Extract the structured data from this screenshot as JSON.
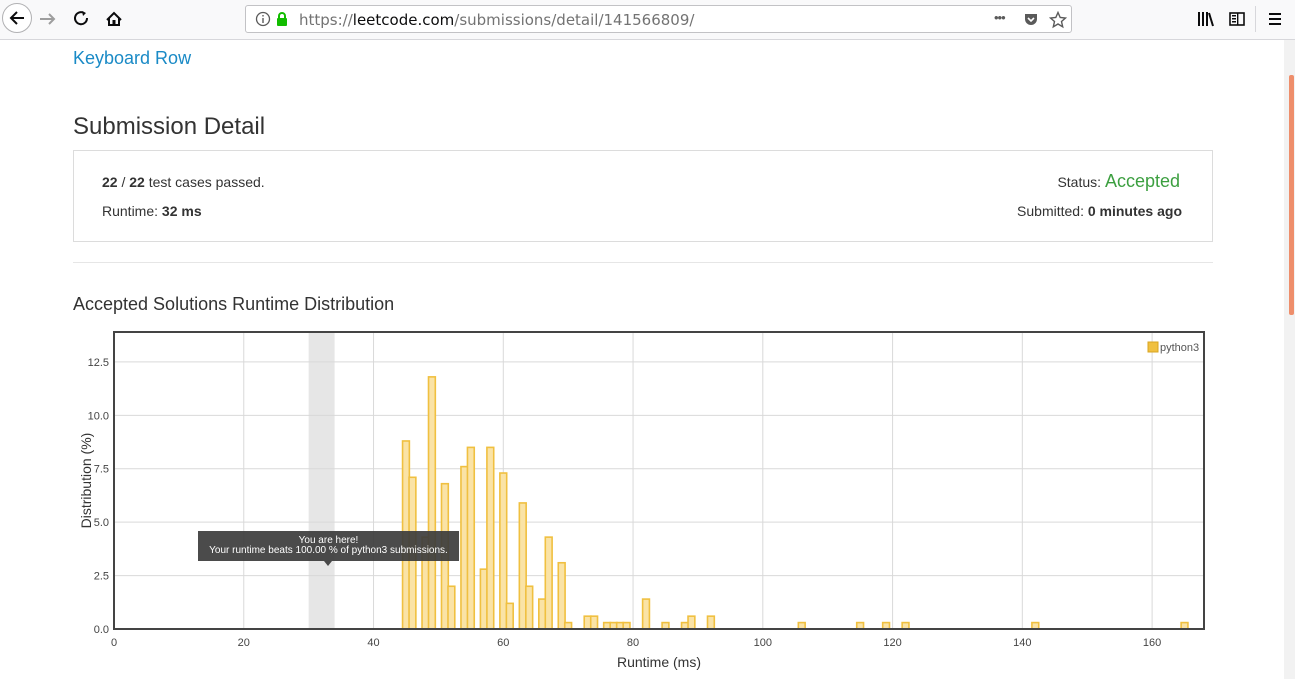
{
  "browser": {
    "url_scheme": "https://",
    "url_host": "leetcode.com",
    "url_path": "/submissions/detail/141566809/",
    "more_glyph": "•••"
  },
  "problem": {
    "title": "Keyboard Row"
  },
  "page_title": "Submission Detail",
  "summary": {
    "passed": "22",
    "separator": "/",
    "total": "22",
    "passed_suffix": "test cases passed.",
    "runtime_label": "Runtime:",
    "runtime_value": "32 ms",
    "status_label": "Status:",
    "status_value": "Accepted",
    "submitted_label": "Submitted:",
    "submitted_value": "0 minutes ago",
    "accent_color": "#3c9f40",
    "link_color": "#1a8ac6"
  },
  "section_title": "Accepted Solutions Runtime Distribution",
  "tooltip": {
    "line1": "You are here!",
    "line2": "Your runtime beats 100.00 % of python3 submissions."
  },
  "chart_data": {
    "type": "bar",
    "xlabel": "Runtime (ms)",
    "ylabel": "Distribution (%)",
    "xlim": [
      0,
      168
    ],
    "ylim": [
      0,
      13.9
    ],
    "xticks": [
      "0",
      "20",
      "40",
      "60",
      "80",
      "100",
      "120",
      "140",
      "160"
    ],
    "yticks": [
      "0.0",
      "2.5",
      "5.0",
      "7.5",
      "10.0",
      "12.5"
    ],
    "grid": true,
    "legend_position": "top-right",
    "highlight_x": [
      30,
      34
    ],
    "series": [
      {
        "name": "python3",
        "color": "#f0c040",
        "x": [
          45,
          46,
          48,
          49,
          51,
          52,
          54,
          55,
          57,
          58,
          60,
          61,
          63,
          64,
          66,
          67,
          69,
          70,
          73,
          74,
          76,
          77,
          78,
          79,
          82,
          85,
          88,
          89,
          92,
          106,
          115,
          119,
          122,
          142,
          165
        ],
        "values": [
          8.8,
          7.1,
          4.3,
          11.8,
          6.8,
          2.0,
          7.6,
          8.5,
          2.8,
          8.5,
          7.3,
          1.2,
          5.9,
          2.0,
          1.4,
          4.3,
          3.1,
          0.3,
          0.6,
          0.6,
          0.3,
          0.3,
          0.3,
          0.3,
          1.4,
          0.3,
          0.3,
          0.6,
          0.6,
          0.3,
          0.3,
          0.3,
          0.3,
          0.3,
          0.3
        ]
      }
    ]
  }
}
